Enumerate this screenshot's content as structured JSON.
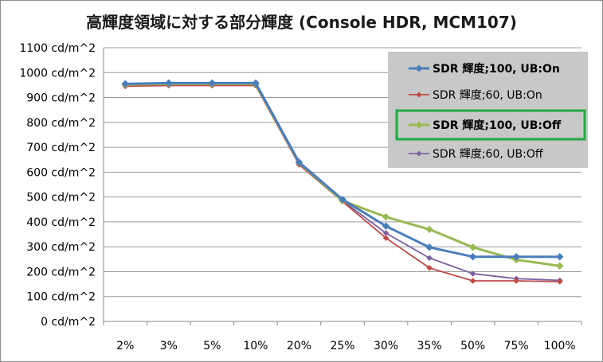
{
  "chart_data": {
    "type": "line",
    "title": "高輝度領域に対する部分輝度 (Console HDR, MCM107)",
    "xlabel": "",
    "ylabel": "",
    "categories": [
      "2%",
      "3%",
      "5%",
      "10%",
      "20%",
      "25%",
      "30%",
      "35%",
      "50%",
      "75%",
      "100%"
    ],
    "y_tick_labels": [
      "0 cd/m^2",
      "100 cd/m^2",
      "200 cd/m^2",
      "300 cd/m^2",
      "400 cd/m^2",
      "500 cd/m^2",
      "600 cd/m^2",
      "700 cd/m^2",
      "800 cd/m^2",
      "900 cd/m^2",
      "1000 cd/m^2",
      "1100 cd/m^2"
    ],
    "ylim": [
      0,
      1100
    ],
    "grid": true,
    "legend_position": "top-right",
    "series": [
      {
        "name": "SDR 輝度;100, UB:On",
        "color": "#4a7ebb",
        "bold": true,
        "highlighted": false,
        "values": [
          955,
          958,
          958,
          958,
          640,
          490,
          383,
          298,
          260,
          260,
          260
        ]
      },
      {
        "name": "SDR 輝度;60, UB:On",
        "color": "#be4b48",
        "bold": false,
        "highlighted": false,
        "values": [
          945,
          948,
          948,
          948,
          630,
          482,
          335,
          215,
          163,
          163,
          160
        ]
      },
      {
        "name": "SDR 輝度;100, UB:Off",
        "color": "#98b954",
        "bold": true,
        "highlighted": true,
        "values": [
          952,
          955,
          955,
          955,
          638,
          485,
          420,
          370,
          298,
          248,
          223
        ]
      },
      {
        "name": "SDR 輝度;60, UB:Off",
        "color": "#7d60a0",
        "bold": false,
        "highlighted": false,
        "values": [
          948,
          950,
          950,
          950,
          633,
          485,
          355,
          255,
          192,
          172,
          165
        ]
      }
    ],
    "colors": {
      "legend_background": "#c8c8c8",
      "legend_highlight": "#21a944",
      "grid": "#9a9a9a"
    }
  }
}
